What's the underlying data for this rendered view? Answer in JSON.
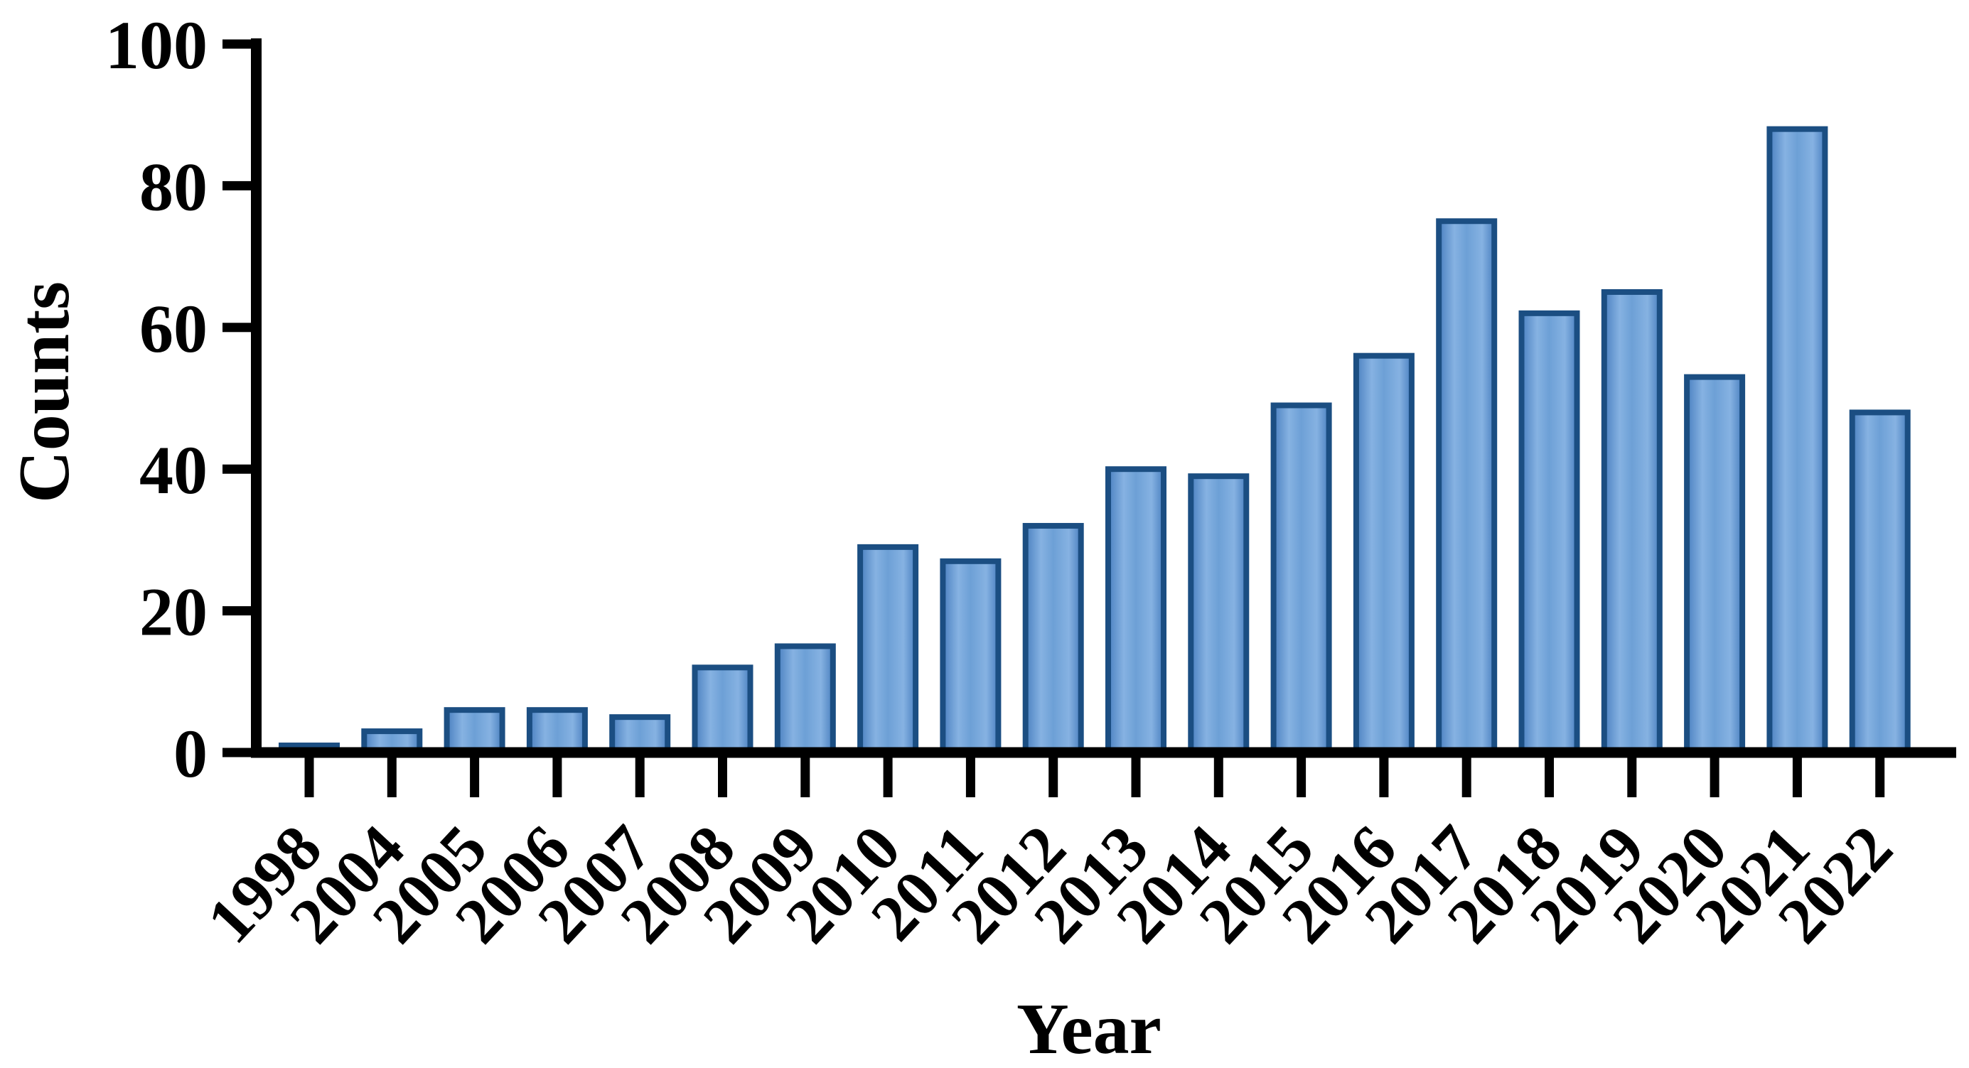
{
  "chart_data": {
    "type": "bar",
    "title": "",
    "xlabel": "Year",
    "ylabel": "Counts",
    "categories": [
      "1998",
      "2004",
      "2005",
      "2006",
      "2007",
      "2008",
      "2009",
      "2010",
      "2011",
      "2012",
      "2013",
      "2014",
      "2015",
      "2016",
      "2017",
      "2018",
      "2019",
      "2020",
      "2021",
      "2022"
    ],
    "values": [
      1,
      3,
      6,
      6,
      5,
      12,
      15,
      29,
      27,
      32,
      40,
      39,
      49,
      56,
      75,
      62,
      65,
      53,
      88,
      48
    ],
    "ylim": [
      0,
      100
    ],
    "yticks": [
      0,
      20,
      40,
      60,
      80,
      100
    ],
    "grid": false,
    "legend": false,
    "x_tick_rotation_deg": -47,
    "colors": {
      "bar_border": "#1b4e82",
      "bar_fill_mid": "#6da0d6",
      "bar_fill_light": "#86b2e2",
      "bar_fill_dark": "#4a80c0",
      "axis": "#000000",
      "background": "#ffffff"
    }
  }
}
